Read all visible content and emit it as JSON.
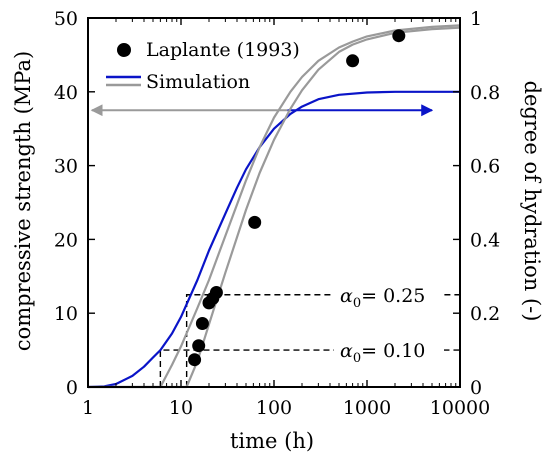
{
  "chart_data": {
    "type": "line",
    "x_axis": {
      "label": "time (h)",
      "scale": "log",
      "range": [
        1,
        10000
      ],
      "ticks": [
        1,
        10,
        100,
        1000,
        10000
      ],
      "tick_labels": [
        "1",
        "10",
        "100",
        "1000",
        "10000"
      ]
    },
    "y_axis_left": {
      "label": "compressive strength (MPa)",
      "range": [
        0,
        50
      ],
      "ticks": [
        0,
        10,
        20,
        30,
        40,
        50
      ],
      "tick_labels": [
        "0",
        "10",
        "20",
        "30",
        "40",
        "50"
      ]
    },
    "y_axis_right": {
      "label": "degree of hydration (-)",
      "range": [
        0,
        1
      ],
      "ticks": [
        0,
        0.2,
        0.4,
        0.6,
        0.8,
        1
      ],
      "tick_labels": [
        "0",
        "0.2",
        "0.4",
        "0.6",
        "0.8",
        "1"
      ]
    },
    "legend": {
      "position": "top-left",
      "entries": [
        {
          "label": "Laplante (1993)",
          "marker": "circle",
          "color": "#000000"
        },
        {
          "label": "Simulation",
          "marker": "line-pair",
          "colors": [
            "#0a14c8",
            "#9a9a9a"
          ]
        }
      ]
    },
    "series": [
      {
        "name": "Laplante (1993)",
        "kind": "scatter",
        "axis": "left",
        "color": "#000000",
        "x": [
          14,
          15.5,
          17,
          20,
          22,
          24,
          62,
          700,
          2200
        ],
        "y": [
          3.7,
          5.6,
          8.6,
          11.4,
          12.0,
          12.8,
          22.3,
          44.2,
          47.6
        ]
      },
      {
        "name": "Simulation",
        "kind": "line",
        "axis": "right",
        "color": "#0a14c8",
        "x": [
          1,
          1.5,
          2,
          3,
          4,
          5,
          6,
          8,
          10,
          15,
          20,
          30,
          40,
          50,
          70,
          100,
          150,
          200,
          300,
          500,
          1000,
          2000,
          5000,
          10000
        ],
        "y": [
          0,
          0.002,
          0.008,
          0.03,
          0.055,
          0.08,
          0.1,
          0.145,
          0.19,
          0.29,
          0.37,
          0.47,
          0.54,
          0.59,
          0.65,
          0.7,
          0.74,
          0.76,
          0.78,
          0.792,
          0.798,
          0.8,
          0.8,
          0.8
        ]
      },
      {
        "kind": "line",
        "axis": "left",
        "color": "#9a9a9a",
        "x": [
          1,
          3,
          5,
          6,
          8,
          10,
          15,
          20,
          30,
          50,
          70,
          100,
          150,
          200,
          300,
          500,
          700,
          1000,
          2000,
          5000,
          10000
        ],
        "y": [
          0,
          0,
          0,
          0,
          3.0,
          5.5,
          10.7,
          14.5,
          20.5,
          28.0,
          32.5,
          36.5,
          40.0,
          42.0,
          44.2,
          46.0,
          46.8,
          47.5,
          48.3,
          48.8,
          49.0
        ]
      },
      {
        "kind": "line",
        "axis": "left",
        "color": "#9a9a9a",
        "x": [
          1,
          5,
          10,
          11.5,
          15,
          20,
          30,
          50,
          70,
          100,
          150,
          200,
          300,
          500,
          700,
          1000,
          2000,
          5000,
          10000
        ],
        "y": [
          0,
          0,
          0,
          0,
          3.5,
          8.5,
          15.5,
          24.0,
          29.0,
          33.5,
          37.7,
          40.2,
          43.0,
          45.4,
          46.4,
          47.1,
          48.0,
          48.5,
          48.7
        ]
      }
    ],
    "annotations": [
      {
        "type": "dashed-level",
        "label_prefix": "α",
        "label_sub": "0",
        "label_suffix": "= 0.25",
        "y_right": 0.25,
        "x_start": 11.5
      },
      {
        "type": "dashed-level",
        "label_prefix": "α",
        "label_sub": "0",
        "label_suffix": "= 0.10",
        "y_right": 0.1,
        "x_start": 6
      },
      {
        "type": "arrow",
        "direction": "left",
        "color": "#9a9a9a",
        "y_left": 37.5,
        "x_from": 140,
        "x_to": 1.1
      },
      {
        "type": "arrow",
        "direction": "right",
        "color": "#0a14c8",
        "y_left": 37.5,
        "x_from": 140,
        "x_to": 5000
      }
    ],
    "grid": false
  }
}
